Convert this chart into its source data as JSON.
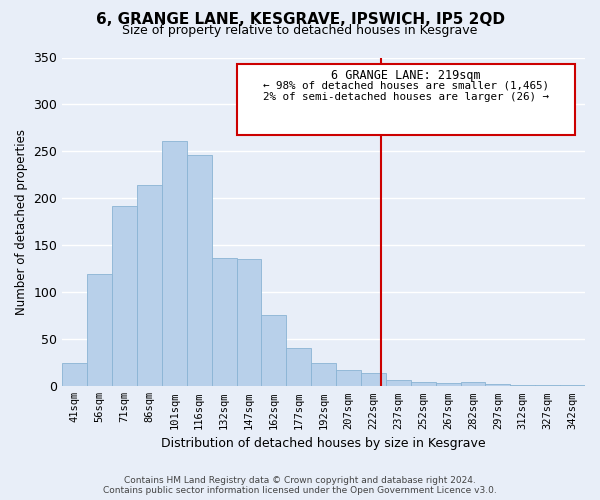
{
  "title": "6, GRANGE LANE, KESGRAVE, IPSWICH, IP5 2QD",
  "subtitle": "Size of property relative to detached houses in Kesgrave",
  "xlabel": "Distribution of detached houses by size in Kesgrave",
  "ylabel": "Number of detached properties",
  "bar_labels": [
    "41sqm",
    "56sqm",
    "71sqm",
    "86sqm",
    "101sqm",
    "116sqm",
    "132sqm",
    "147sqm",
    "162sqm",
    "177sqm",
    "192sqm",
    "207sqm",
    "222sqm",
    "237sqm",
    "252sqm",
    "267sqm",
    "282sqm",
    "297sqm",
    "312sqm",
    "327sqm",
    "342sqm"
  ],
  "bar_values": [
    25,
    120,
    192,
    214,
    261,
    246,
    137,
    136,
    76,
    41,
    25,
    17,
    14,
    7,
    5,
    4,
    5,
    2,
    1,
    1,
    1
  ],
  "bar_color": "#b8d0ea",
  "bar_edge_color": "#8ab4d4",
  "vline_color": "#cc0000",
  "annotation_title": "6 GRANGE LANE: 219sqm",
  "annotation_line1": "← 98% of detached houses are smaller (1,465)",
  "annotation_line2": "2% of semi-detached houses are larger (26) →",
  "annotation_box_color": "#ffffff",
  "annotation_box_edge": "#cc0000",
  "background_color": "#e8eef8",
  "grid_color": "#ffffff",
  "ylim": [
    0,
    350
  ],
  "yticks": [
    0,
    50,
    100,
    150,
    200,
    250,
    300,
    350
  ],
  "footer_line1": "Contains HM Land Registry data © Crown copyright and database right 2024.",
  "footer_line2": "Contains public sector information licensed under the Open Government Licence v3.0."
}
